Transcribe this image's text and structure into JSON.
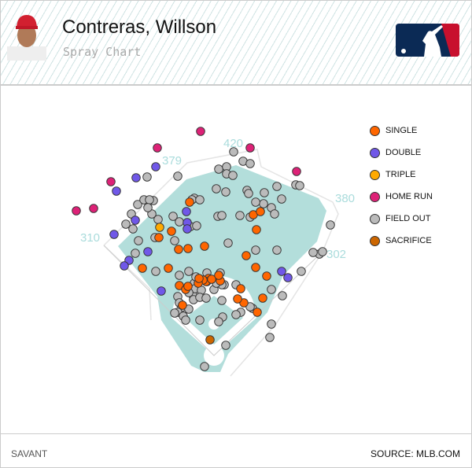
{
  "header": {
    "player_name": "Contreras, Willson",
    "subtitle": "Spray Chart",
    "logo": "MLB"
  },
  "footer": {
    "left": "SAVANT",
    "right": "SOURCE: MLB.COM"
  },
  "colors": {
    "single": "#ff6600",
    "double": "#7058e8",
    "triple": "#ffaa00",
    "home_run": "#dd2277",
    "field_out": "#bbbbbb",
    "sacrifice": "#cc6600",
    "grass": "#b3dedb"
  },
  "chart_data": {
    "type": "scatter",
    "title": "Spray Chart",
    "fence_distances": [
      "310",
      "379",
      "420",
      "380",
      "302"
    ],
    "legend": [
      {
        "key": "single",
        "label": "SINGLE"
      },
      {
        "key": "double",
        "label": "DOUBLE"
      },
      {
        "key": "triple",
        "label": "TRIPLE"
      },
      {
        "key": "home_run",
        "label": "HOME RUN"
      },
      {
        "key": "field_out",
        "label": "FIELD OUT"
      },
      {
        "key": "sacrifice",
        "label": "SACRIFICE"
      }
    ],
    "legend_position": "right",
    "points": {
      "field_out": [
        [
          207,
          33
        ],
        [
          219,
          45
        ],
        [
          228,
          48
        ],
        [
          188,
          55
        ],
        [
          198,
          52
        ],
        [
          198,
          61
        ],
        [
          206,
          63
        ],
        [
          97,
          65
        ],
        [
          136,
          64
        ],
        [
          286,
          75
        ],
        [
          291,
          76
        ],
        [
          262,
          77
        ],
        [
          185,
          80
        ],
        [
          197,
          84
        ],
        [
          224,
          82
        ],
        [
          226,
          86
        ],
        [
          246,
          85
        ],
        [
          157,
          92
        ],
        [
          154,
          94
        ],
        [
          164,
          94
        ],
        [
          245,
          99
        ],
        [
          255,
          104
        ],
        [
          235,
          97
        ],
        [
          268,
          93
        ],
        [
          77,
          112
        ],
        [
          85,
          100
        ],
        [
          105,
          95
        ],
        [
          93,
          94
        ],
        [
          100,
          94
        ],
        [
          138,
          122
        ],
        [
          130,
          115
        ],
        [
          187,
          115
        ],
        [
          192,
          114
        ],
        [
          215,
          114
        ],
        [
          259,
          112
        ],
        [
          228,
          116
        ],
        [
          330,
          126
        ],
        [
          70,
          125
        ],
        [
          79,
          131
        ],
        [
          103,
          112
        ],
        [
          111,
          119
        ],
        [
          98,
          104
        ],
        [
          152,
          128
        ],
        [
          160,
          127
        ],
        [
          86,
          146
        ],
        [
          132,
          146
        ],
        [
          82,
          162
        ],
        [
          107,
          142
        ],
        [
          235,
          158
        ],
        [
          262,
          158
        ],
        [
          316,
          163
        ],
        [
          320,
          160
        ],
        [
          200,
          149
        ],
        [
          108,
          185
        ],
        [
          138,
          190
        ],
        [
          150,
          185
        ],
        [
          157,
          200
        ],
        [
          195,
          202
        ],
        [
          210,
          202
        ],
        [
          155,
          215
        ],
        [
          158,
          207
        ],
        [
          150,
          212
        ],
        [
          166,
          209
        ],
        [
          182,
          208
        ],
        [
          192,
          202
        ],
        [
          173,
          198
        ],
        [
          156,
          221
        ],
        [
          136,
          217
        ],
        [
          138,
          225
        ],
        [
          141,
          231
        ],
        [
          136,
          237
        ],
        [
          143,
          242
        ],
        [
          185,
          200
        ],
        [
          164,
          196
        ],
        [
          159,
          192
        ],
        [
          190,
          187
        ],
        [
          173,
          187
        ],
        [
          293,
          185
        ],
        [
          255,
          208
        ],
        [
          269,
          216
        ],
        [
          164,
          218
        ],
        [
          172,
          219
        ],
        [
          192,
          222
        ],
        [
          150,
          233
        ],
        [
          146,
          247
        ],
        [
          193,
          243
        ],
        [
          188,
          249
        ],
        [
          164,
          247
        ],
        [
          216,
          237
        ],
        [
          231,
          232
        ],
        [
          210,
          240
        ],
        [
          228,
          230
        ],
        [
          255,
          252
        ],
        [
          253,
          269
        ],
        [
          197,
          279
        ],
        [
          170,
          306
        ],
        [
          132,
          238
        ],
        [
          308,
          161
        ]
      ],
      "single": [
        [
          151,
          97
        ],
        [
          128,
          134
        ],
        [
          112,
          142
        ],
        [
          137,
          157
        ],
        [
          149,
          156
        ],
        [
          170,
          153
        ],
        [
          124,
          181
        ],
        [
          91,
          181
        ],
        [
          232,
          113
        ],
        [
          241,
          109
        ],
        [
          236,
          132
        ],
        [
          223,
          165
        ],
        [
          235,
          180
        ],
        [
          216,
          207
        ],
        [
          249,
          191
        ],
        [
          220,
          225
        ],
        [
          212,
          220
        ],
        [
          237,
          237
        ],
        [
          244,
          219
        ],
        [
          138,
          203
        ],
        [
          142,
          228
        ],
        [
          175,
          194
        ],
        [
          172,
          198
        ],
        [
          168,
          196
        ],
        [
          162,
          200
        ],
        [
          179,
          195
        ],
        [
          190,
          197
        ],
        [
          163,
          194
        ],
        [
          188,
          190
        ],
        [
          146,
          208
        ],
        [
          149,
          204
        ]
      ],
      "double": [
        [
          108,
          52
        ],
        [
          83,
          66
        ],
        [
          58,
          83
        ],
        [
          82,
          120
        ],
        [
          55,
          138
        ],
        [
          74,
          171
        ],
        [
          68,
          178
        ],
        [
          148,
          123
        ],
        [
          148,
          131
        ],
        [
          147,
          109
        ],
        [
          98,
          160
        ],
        [
          115,
          210
        ],
        [
          268,
          185
        ],
        [
          276,
          193
        ]
      ],
      "triple": [
        [
          113,
          129
        ]
      ],
      "home_run": [
        [
          165,
          7
        ],
        [
          110,
          28
        ],
        [
          228,
          28
        ],
        [
          51,
          71
        ],
        [
          7,
          108
        ],
        [
          29,
          105
        ],
        [
          287,
          58
        ]
      ],
      "sacrifice": [
        [
          177,
          272
        ]
      ]
    }
  }
}
